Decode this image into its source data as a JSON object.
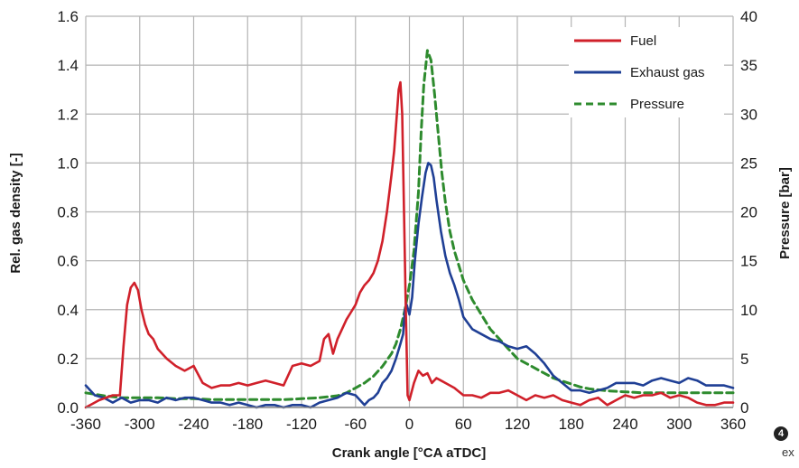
{
  "chart_data": {
    "type": "line",
    "xlabel": "Crank angle [°CA aTDC]",
    "ylabel_left": "Rel. gas density [-]",
    "ylabel_right": "Pressure [bar]",
    "xlim": [
      -360,
      360
    ],
    "ylim_left": [
      0,
      1.6
    ],
    "ylim_right": [
      0,
      40
    ],
    "x_ticks": [
      -360,
      -300,
      -240,
      -180,
      -120,
      -60,
      0,
      60,
      120,
      180,
      240,
      300,
      360
    ],
    "x_tick_labels": [
      "-360",
      "-300",
      "-240",
      "-180",
      "-120",
      "-60",
      "0",
      "60",
      "120",
      "180",
      "240",
      "300",
      "360"
    ],
    "y_left_ticks": [
      0,
      0.2,
      0.4,
      0.6,
      0.8,
      1.0,
      1.2,
      1.4,
      1.6
    ],
    "y_left_tick_labels": [
      "0.0",
      "0.2",
      "0.4",
      "0.6",
      "0.8",
      "1.0",
      "1.2",
      "1.4",
      "1.6"
    ],
    "y_right_ticks": [
      0,
      5,
      10,
      15,
      20,
      25,
      30,
      35,
      40
    ],
    "y_right_tick_labels": [
      "0",
      "5",
      "10",
      "15",
      "20",
      "25",
      "30",
      "35",
      "40"
    ],
    "grid": true,
    "legend_position": "top-right",
    "series": [
      {
        "name": "Fuel",
        "axis": "left",
        "color": "#d0202a",
        "dash": "solid",
        "x": [
          -360,
          -345,
          -330,
          -322,
          -318,
          -314,
          -310,
          -306,
          -302,
          -298,
          -294,
          -290,
          -285,
          -280,
          -270,
          -260,
          -250,
          -240,
          -230,
          -220,
          -210,
          -200,
          -190,
          -180,
          -170,
          -160,
          -150,
          -140,
          -130,
          -120,
          -110,
          -100,
          -95,
          -90,
          -85,
          -80,
          -75,
          -70,
          -65,
          -60,
          -55,
          -50,
          -45,
          -40,
          -35,
          -30,
          -25,
          -20,
          -17,
          -14,
          -12,
          -10,
          -8,
          -6,
          -4,
          -2,
          0,
          5,
          10,
          15,
          20,
          25,
          30,
          35,
          40,
          50,
          60,
          70,
          80,
          90,
          100,
          110,
          120,
          130,
          140,
          150,
          160,
          170,
          180,
          190,
          200,
          210,
          220,
          230,
          240,
          250,
          260,
          270,
          280,
          290,
          300,
          310,
          320,
          330,
          340,
          350,
          360
        ],
        "y": [
          0.0,
          0.03,
          0.05,
          0.05,
          0.25,
          0.42,
          0.49,
          0.51,
          0.48,
          0.4,
          0.34,
          0.3,
          0.28,
          0.24,
          0.2,
          0.17,
          0.15,
          0.17,
          0.1,
          0.08,
          0.09,
          0.09,
          0.1,
          0.09,
          0.1,
          0.11,
          0.1,
          0.09,
          0.17,
          0.18,
          0.17,
          0.19,
          0.28,
          0.3,
          0.22,
          0.28,
          0.32,
          0.36,
          0.39,
          0.42,
          0.47,
          0.5,
          0.52,
          0.55,
          0.6,
          0.68,
          0.8,
          0.95,
          1.05,
          1.2,
          1.3,
          1.33,
          1.2,
          0.8,
          0.4,
          0.05,
          0.03,
          0.1,
          0.15,
          0.13,
          0.14,
          0.1,
          0.12,
          0.11,
          0.1,
          0.08,
          0.05,
          0.05,
          0.04,
          0.06,
          0.06,
          0.07,
          0.05,
          0.03,
          0.05,
          0.04,
          0.05,
          0.03,
          0.02,
          0.01,
          0.03,
          0.04,
          0.01,
          0.03,
          0.05,
          0.04,
          0.05,
          0.05,
          0.06,
          0.04,
          0.05,
          0.04,
          0.02,
          0.01,
          0.01,
          0.02,
          0.02
        ]
      },
      {
        "name": "Exhaust gas",
        "axis": "left",
        "color": "#1f3f95",
        "dash": "solid",
        "x": [
          -360,
          -350,
          -340,
          -330,
          -320,
          -310,
          -300,
          -290,
          -280,
          -270,
          -260,
          -250,
          -240,
          -230,
          -220,
          -210,
          -200,
          -190,
          -180,
          -170,
          -160,
          -150,
          -140,
          -130,
          -120,
          -110,
          -100,
          -90,
          -80,
          -70,
          -60,
          -50,
          -45,
          -40,
          -35,
          -30,
          -25,
          -20,
          -15,
          -10,
          -7,
          -5,
          -3,
          0,
          3,
          6,
          10,
          14,
          18,
          21,
          24,
          27,
          30,
          35,
          40,
          45,
          50,
          55,
          60,
          70,
          80,
          90,
          100,
          110,
          120,
          130,
          140,
          150,
          160,
          170,
          180,
          190,
          200,
          210,
          220,
          230,
          240,
          250,
          260,
          270,
          280,
          290,
          300,
          310,
          320,
          330,
          340,
          350,
          360
        ],
        "y": [
          0.09,
          0.05,
          0.04,
          0.02,
          0.04,
          0.02,
          0.03,
          0.03,
          0.02,
          0.04,
          0.03,
          0.04,
          0.04,
          0.03,
          0.02,
          0.02,
          0.01,
          0.02,
          0.01,
          0.0,
          0.01,
          0.01,
          0.0,
          0.01,
          0.01,
          0.0,
          0.02,
          0.03,
          0.04,
          0.06,
          0.05,
          0.01,
          0.03,
          0.04,
          0.06,
          0.1,
          0.12,
          0.15,
          0.2,
          0.26,
          0.3,
          0.4,
          0.42,
          0.38,
          0.45,
          0.6,
          0.75,
          0.86,
          0.96,
          1.0,
          0.99,
          0.94,
          0.85,
          0.72,
          0.62,
          0.55,
          0.5,
          0.44,
          0.37,
          0.32,
          0.3,
          0.28,
          0.27,
          0.25,
          0.24,
          0.25,
          0.22,
          0.18,
          0.13,
          0.1,
          0.07,
          0.07,
          0.06,
          0.07,
          0.08,
          0.1,
          0.1,
          0.1,
          0.09,
          0.11,
          0.12,
          0.11,
          0.1,
          0.12,
          0.11,
          0.09,
          0.09,
          0.09,
          0.08
        ]
      },
      {
        "name": "Pressure",
        "axis": "right",
        "color": "#2e8b2e",
        "dash": "dashed",
        "x": [
          -360,
          -340,
          -320,
          -300,
          -280,
          -260,
          -240,
          -220,
          -200,
          -180,
          -160,
          -140,
          -120,
          -100,
          -80,
          -70,
          -60,
          -50,
          -40,
          -30,
          -20,
          -15,
          -10,
          -5,
          0,
          5,
          10,
          13,
          16,
          20,
          24,
          28,
          32,
          36,
          40,
          45,
          50,
          55,
          60,
          70,
          80,
          90,
          100,
          110,
          120,
          130,
          140,
          150,
          160,
          170,
          180,
          190,
          200,
          220,
          240,
          260,
          280,
          300,
          320,
          340,
          360
        ],
        "y": [
          1.5,
          1.2,
          1.0,
          1.0,
          1.0,
          0.9,
          0.9,
          0.8,
          0.8,
          0.8,
          0.8,
          0.8,
          0.9,
          1.0,
          1.2,
          1.5,
          2.0,
          2.5,
          3.2,
          4.2,
          5.5,
          6.5,
          8.0,
          10.0,
          12.5,
          16.0,
          22.0,
          28.0,
          33.0,
          36.5,
          35.5,
          32.0,
          28.0,
          24.0,
          21.0,
          18.0,
          16.0,
          14.5,
          13.0,
          11.0,
          9.5,
          8.0,
          7.0,
          6.0,
          5.0,
          4.5,
          4.0,
          3.5,
          3.0,
          2.7,
          2.4,
          2.1,
          1.9,
          1.7,
          1.6,
          1.5,
          1.5,
          1.5,
          1.5,
          1.5,
          1.5
        ]
      }
    ]
  },
  "figure": {
    "badge": "4",
    "caption_fragment": "ex"
  }
}
